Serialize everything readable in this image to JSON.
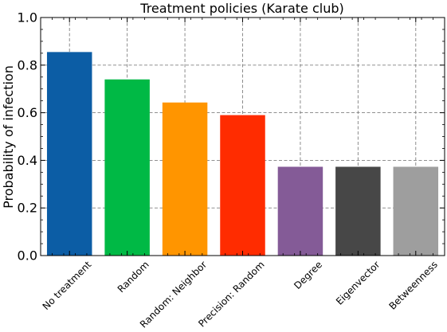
{
  "chart_data": {
    "type": "bar",
    "title": "Treatment policies (Karate club)",
    "xlabel": "",
    "ylabel": "Probability of infection",
    "categories": [
      "No treatment",
      "Random",
      "Random: Neighbor",
      "Precision: Random",
      "Degree",
      "Eigenvector",
      "Betweenness"
    ],
    "values": [
      0.855,
      0.74,
      0.643,
      0.59,
      0.373,
      0.373,
      0.373
    ],
    "colors": [
      "#0c5da5",
      "#00b945",
      "#ff9500",
      "#ff2c00",
      "#845b97",
      "#474747",
      "#9e9e9e"
    ],
    "ylim": [
      0,
      1.0
    ],
    "yticks": [
      "0.0",
      "0.2",
      "0.4",
      "0.6",
      "0.8",
      "1.0"
    ],
    "grid": true,
    "legend": "none"
  }
}
